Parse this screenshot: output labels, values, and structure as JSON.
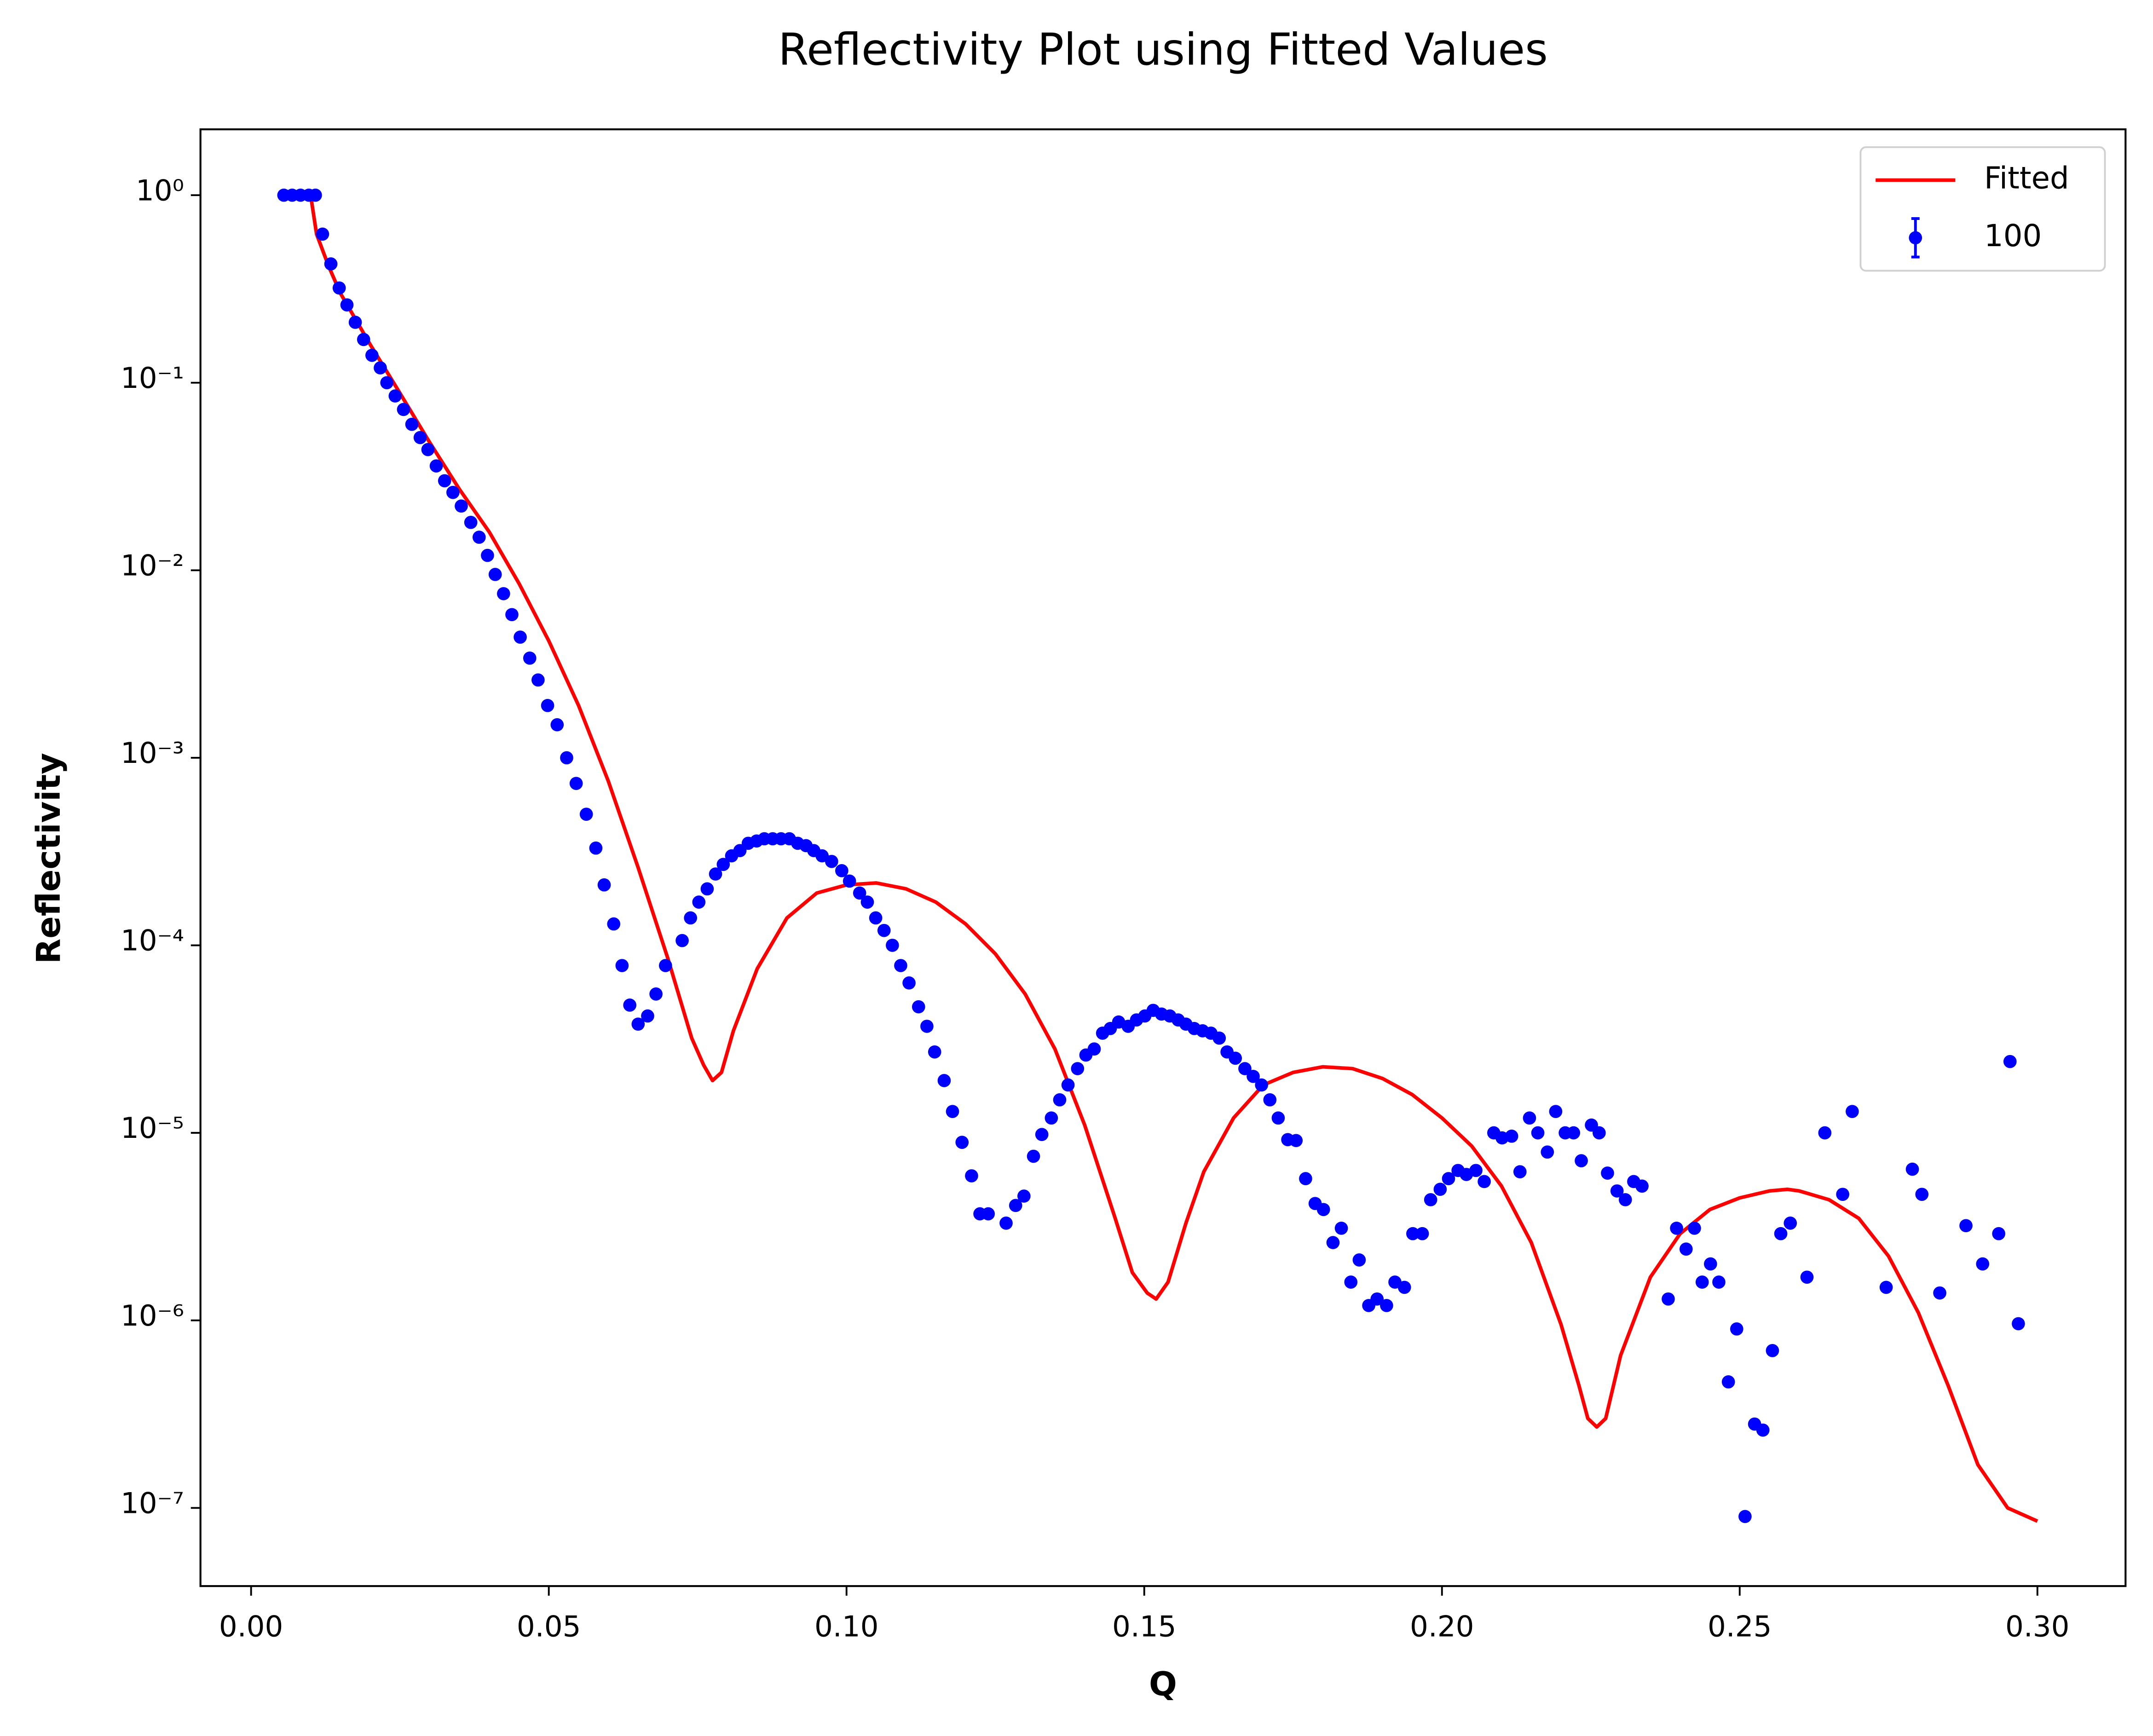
{
  "chart_data": {
    "type": "scatter",
    "title": "Reflectivity Plot using Fitted Values",
    "x_label": "Q",
    "y_label": "Reflectivity",
    "yscale": "log",
    "legend": "upper right",
    "xlim": [
      -0.0085,
      0.3148
    ],
    "ylim": [
      3.83e-08,
      2.245
    ],
    "xticks": [
      {
        "value": 0,
        "label": "0.00"
      },
      {
        "value": 0.05,
        "label": "0.05"
      },
      {
        "value": 0.1,
        "label": "0.10"
      },
      {
        "value": 0.15,
        "label": "0.15"
      },
      {
        "value": 0.2,
        "label": "0.20"
      },
      {
        "value": 0.25,
        "label": "0.25"
      },
      {
        "value": 0.3,
        "label": "0.30"
      }
    ],
    "yticks": [
      {
        "value": 1,
        "label": "10⁰"
      },
      {
        "value": 0.1,
        "label": "10⁻¹"
      },
      {
        "value": 0.01,
        "label": "10⁻²"
      },
      {
        "value": 0.001,
        "label": "10⁻³"
      },
      {
        "value": 0.0001,
        "label": "10⁻⁴"
      },
      {
        "value": 1e-05,
        "label": "10⁻⁵"
      },
      {
        "value": 1e-06,
        "label": "10⁻⁶"
      },
      {
        "value": 1e-07,
        "label": "10⁻⁷"
      }
    ],
    "series": [
      {
        "name": "Fitted",
        "type": "line",
        "color": "#ff0000",
        "x": [
          0.005,
          0.01,
          0.011,
          0.013,
          0.015,
          0.02,
          0.025,
          0.03,
          0.035,
          0.04,
          0.045,
          0.05,
          0.055,
          0.06,
          0.065,
          0.07,
          0.074,
          0.076,
          0.0775,
          0.079,
          0.081,
          0.085,
          0.09,
          0.095,
          0.1,
          0.105,
          0.11,
          0.115,
          0.12,
          0.125,
          0.13,
          0.135,
          0.14,
          0.145,
          0.148,
          0.1505,
          0.152,
          0.154,
          0.157,
          0.16,
          0.165,
          0.17,
          0.175,
          0.18,
          0.185,
          0.19,
          0.195,
          0.2,
          0.205,
          0.21,
          0.215,
          0.22,
          0.223,
          0.2245,
          0.226,
          0.2275,
          0.23,
          0.235,
          0.24,
          0.245,
          0.25,
          0.255,
          0.258,
          0.26,
          0.265,
          0.27,
          0.275,
          0.28,
          0.285,
          0.29,
          0.295,
          0.3
        ],
        "values": [
          1,
          1,
          0.62,
          0.42,
          0.3,
          0.16,
          0.088,
          0.048,
          0.027,
          0.016,
          0.0085,
          0.0042,
          0.0019,
          0.00075,
          0.00026,
          8.5e-05,
          3.2e-05,
          2.3e-05,
          1.9e-05,
          2.1e-05,
          3.5e-05,
          7.5e-05,
          0.00014,
          0.00019,
          0.00021,
          0.000215,
          0.0002,
          0.00017,
          0.00013,
          9e-05,
          5.5e-05,
          2.8e-05,
          1.1e-05,
          3.6e-06,
          1.8e-06,
          1.4e-06,
          1.3e-06,
          1.6e-06,
          3.3e-06,
          6.2e-06,
          1.2e-05,
          1.8e-05,
          2.1e-05,
          2.25e-05,
          2.2e-05,
          1.95e-05,
          1.6e-05,
          1.2e-05,
          8.5e-06,
          5.2e-06,
          2.6e-06,
          9.5e-07,
          4.5e-07,
          3e-07,
          2.7e-07,
          3e-07,
          6.5e-07,
          1.7e-06,
          2.9e-06,
          3.9e-06,
          4.5e-06,
          4.9e-06,
          5e-06,
          4.9e-06,
          4.4e-06,
          3.5e-06,
          2.2e-06,
          1.1e-06,
          4.5e-07,
          1.7e-07,
          1e-07,
          8.5e-08
        ]
      },
      {
        "name": "100",
        "type": "scatter",
        "color": "#0000ff",
        "x": [
          0.0055,
          0.0069,
          0.0083,
          0.0097,
          0.0108,
          0.012,
          0.0134,
          0.0148,
          0.0161,
          0.0175,
          0.0189,
          0.0203,
          0.0217,
          0.0228,
          0.0242,
          0.0256,
          0.027,
          0.0284,
          0.0297,
          0.0311,
          0.0325,
          0.0339,
          0.0353,
          0.0369,
          0.0383,
          0.0397,
          0.041,
          0.0424,
          0.0438,
          0.0452,
          0.0468,
          0.0482,
          0.0498,
          0.0514,
          0.053,
          0.0546,
          0.0563,
          0.0579,
          0.0593,
          0.0609,
          0.0623,
          0.0636,
          0.065,
          0.0666,
          0.068,
          0.0696,
          0.0724,
          0.0738,
          0.0752,
          0.0766,
          0.078,
          0.0793,
          0.0807,
          0.0821,
          0.0835,
          0.0849,
          0.0862,
          0.0876,
          0.089,
          0.0904,
          0.0918,
          0.0932,
          0.0945,
          0.0959,
          0.0975,
          0.0992,
          0.1005,
          0.1022,
          0.1035,
          0.1049,
          0.1063,
          0.1077,
          0.1091,
          0.1105,
          0.1121,
          0.1135,
          0.1148,
          0.1164,
          0.1178,
          0.1194,
          0.121,
          0.1224,
          0.1238,
          0.1268,
          0.1284,
          0.1298,
          0.1314,
          0.1328,
          0.1344,
          0.1358,
          0.1372,
          0.1388,
          0.1402,
          0.1416,
          0.143,
          0.1443,
          0.1457,
          0.1473,
          0.1487,
          0.1501,
          0.1515,
          0.1529,
          0.1543,
          0.1557,
          0.157,
          0.1584,
          0.1598,
          0.1612,
          0.1626,
          0.1639,
          0.1653,
          0.1669,
          0.1683,
          0.1697,
          0.1711,
          0.1725,
          0.1741,
          0.1755,
          0.1771,
          0.1787,
          0.1801,
          0.1817,
          0.1831,
          0.1847,
          0.1861,
          0.1877,
          0.1891,
          0.1907,
          0.1921,
          0.1937,
          0.1951,
          0.1967,
          0.1981,
          0.1997,
          0.2011,
          0.2027,
          0.2041,
          0.2057,
          0.2071,
          0.2087,
          0.2101,
          0.2117,
          0.2131,
          0.2147,
          0.2161,
          0.2177,
          0.2191,
          0.2207,
          0.2221,
          0.2234,
          0.2251,
          0.2264,
          0.2278,
          0.2294,
          0.2308,
          0.2322,
          0.2336,
          0.238,
          0.2394,
          0.241,
          0.2424,
          0.2437,
          0.2451,
          0.2465,
          0.2481,
          0.2495,
          0.2509,
          0.2525,
          0.2539,
          0.2555,
          0.2569,
          0.2585,
          0.2613,
          0.2643,
          0.2673,
          0.2689,
          0.2746,
          0.279,
          0.2806,
          0.2836,
          0.288,
          0.2908,
          0.2935,
          0.2954,
          0.2968
        ],
        "values": [
          1,
          1,
          1,
          1,
          1,
          0.62,
          0.43,
          0.32,
          0.26,
          0.21,
          0.17,
          0.14,
          0.12,
          0.1,
          0.085,
          0.072,
          0.06,
          0.051,
          0.044,
          0.036,
          0.03,
          0.026,
          0.022,
          0.018,
          0.015,
          0.012,
          0.0095,
          0.0075,
          0.0058,
          0.0044,
          0.0034,
          0.0026,
          0.0019,
          0.0015,
          0.001,
          0.00073,
          0.0005,
          0.00033,
          0.00021,
          0.00013,
          7.8e-05,
          4.8e-05,
          3.8e-05,
          4.2e-05,
          5.5e-05,
          7.8e-05,
          0.000106,
          0.00014,
          0.00017,
          0.0002,
          0.00024,
          0.00027,
          0.0003,
          0.00032,
          0.00035,
          0.00036,
          0.00037,
          0.00037,
          0.00037,
          0.00037,
          0.00035,
          0.00034,
          0.00032,
          0.0003,
          0.00028,
          0.00025,
          0.00022,
          0.00019,
          0.00017,
          0.00014,
          0.00012,
          0.0001,
          7.8e-05,
          6.3e-05,
          4.7e-05,
          3.7e-05,
          2.7e-05,
          1.9e-05,
          1.3e-05,
          8.9e-06,
          5.9e-06,
          3.7e-06,
          3.7e-06,
          3.3e-06,
          4.1e-06,
          4.6e-06,
          7.5e-06,
          9.8e-06,
          1.2e-05,
          1.5e-05,
          1.8e-05,
          2.2e-05,
          2.6e-05,
          2.8e-05,
          3.4e-05,
          3.6e-05,
          3.9e-05,
          3.7e-05,
          4e-05,
          4.2e-05,
          4.5e-05,
          4.3e-05,
          4.2e-05,
          4e-05,
          3.8e-05,
          3.6e-05,
          3.5e-05,
          3.4e-05,
          3.2e-05,
          2.7e-05,
          2.5e-05,
          2.2e-05,
          2e-05,
          1.8e-05,
          1.5e-05,
          1.2e-05,
          9.2e-06,
          9.1e-06,
          5.7e-06,
          4.2e-06,
          3.9e-06,
          2.6e-06,
          3.1e-06,
          1.6e-06,
          2.1e-06,
          1.2e-06,
          1.3e-06,
          1.2e-06,
          1.6e-06,
          1.5e-06,
          2.9e-06,
          2.9e-06,
          4.4e-06,
          5e-06,
          5.7e-06,
          6.3e-06,
          6e-06,
          6.3e-06,
          5.5e-06,
          1e-05,
          9.4e-06,
          9.6e-06,
          6.2e-06,
          1.2e-05,
          1e-05,
          7.9e-06,
          1.3e-05,
          1e-05,
          1e-05,
          7.1e-06,
          1.1e-05,
          1e-05,
          6.1e-06,
          4.9e-06,
          4.4e-06,
          5.5e-06,
          5.2e-06,
          1.3e-06,
          3.1e-06,
          2.4e-06,
          3.1e-06,
          1.6e-06,
          2e-06,
          1.6e-06,
          4.7e-07,
          9e-07,
          9e-08,
          2.8e-07,
          2.6e-07,
          6.9e-07,
          2.9e-06,
          3.3e-06,
          1.7e-06,
          1e-05,
          4.7e-06,
          1.3e-05,
          1.5e-06,
          6.4e-06,
          4.7e-06,
          1.4e-06,
          3.2e-06,
          2e-06,
          2.9e-06,
          2.4e-05,
          9.6e-07
        ]
      }
    ]
  }
}
